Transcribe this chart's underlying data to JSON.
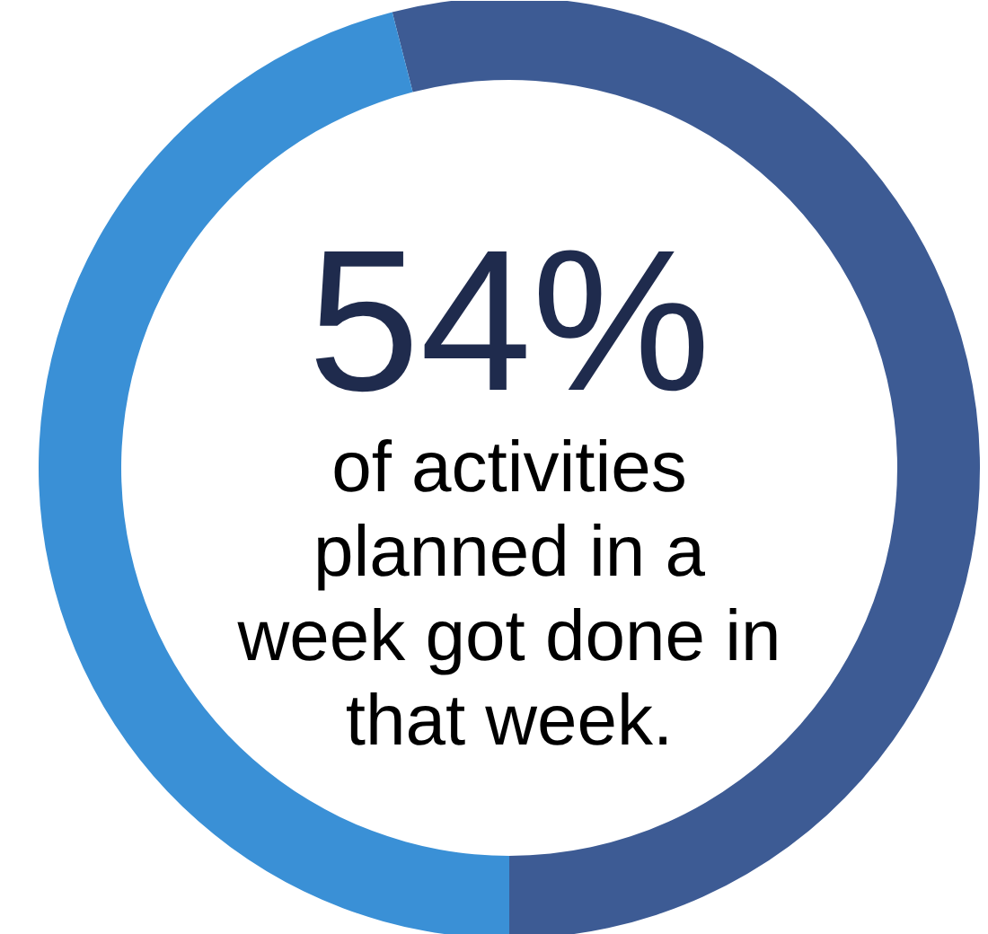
{
  "chart_data": {
    "type": "donut",
    "categories": [
      null,
      null
    ],
    "values": [
      54,
      46
    ],
    "colors": [
      "#3d5b94",
      "#3a90d6"
    ],
    "value_labels": [
      "54%",
      null
    ],
    "annotations": [
      "of activities planned in a week got done in that week."
    ]
  }
}
